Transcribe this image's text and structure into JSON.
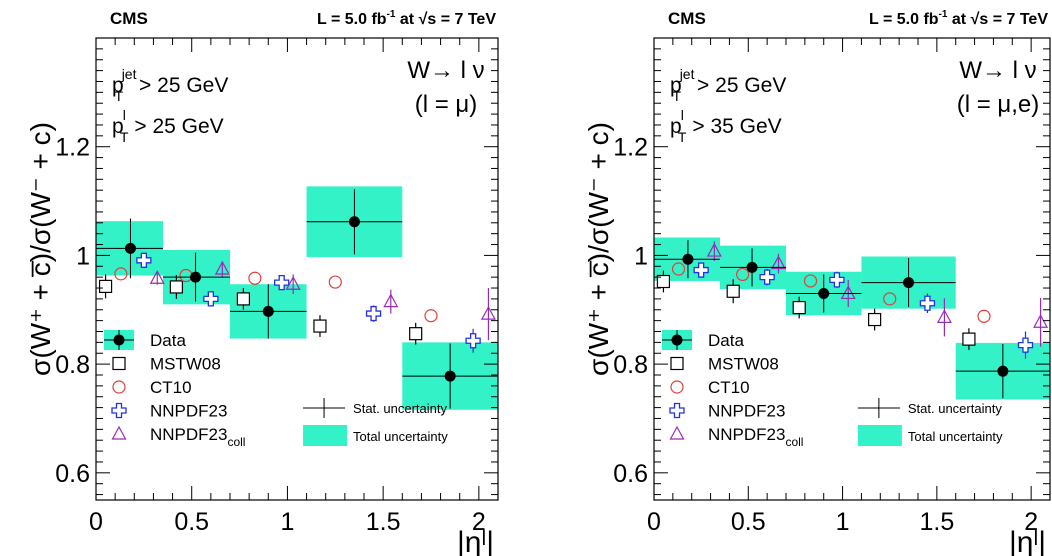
{
  "chart_data": [
    {
      "type": "scatter",
      "experiment": "CMS",
      "luminosity": "L = 5.0 fb",
      "luminosity_exp": "-1",
      "energy_pre": " at ",
      "energy_s": "s",
      "energy_post": " = 7 TeV",
      "process": "W→ l ν",
      "channel": "(l = μ)",
      "cut_jet": "> 25 GeV",
      "cut_lepton": "> 35 GeV",
      "cut_lepton_left": "> 25 GeV",
      "ylabel": "σ(W⁺ + c̅)/σ(W⁻ + c)",
      "xlabel": "|ηˡ|",
      "xlim": [
        0,
        2.1
      ],
      "ylim": [
        0.55,
        1.4
      ],
      "xticks": [
        "0",
        "0.5",
        "1",
        "1.5",
        "2"
      ],
      "yticks": [
        "0.6",
        "0.8",
        "1",
        "1.2"
      ],
      "bins": [
        [
          0,
          0.35
        ],
        [
          0.35,
          0.7
        ],
        [
          0.7,
          1.1
        ],
        [
          1.1,
          1.6
        ],
        [
          1.6,
          2.1
        ]
      ],
      "data": {
        "name": "Data",
        "x": [
          0.18,
          0.52,
          0.9,
          1.35,
          1.85
        ],
        "y": [
          1.013,
          0.96,
          0.897,
          1.062,
          0.778
        ],
        "stat": [
          0.055,
          0.045,
          0.05,
          0.06,
          0.06
        ],
        "total": [
          0.05,
          0.05,
          0.05,
          0.065,
          0.062
        ]
      },
      "theory": [
        {
          "name": "MSTW08",
          "x": [
            0.05,
            0.42,
            0.77,
            1.17,
            1.67
          ],
          "y": [
            0.943,
            0.942,
            0.92,
            0.87,
            0.856
          ],
          "err": [
            0.022,
            0.022,
            0.02,
            0.02,
            0.02
          ]
        },
        {
          "name": "CT10",
          "x": [
            0.13,
            0.47,
            0.83,
            1.25,
            1.75
          ],
          "y": [
            0.966,
            0.963,
            0.958,
            0.951,
            0.889
          ],
          "err": [
            0,
            0,
            0,
            0,
            0
          ]
        },
        {
          "name": "NNPDF23",
          "x": [
            0.25,
            0.6,
            0.97,
            1.45,
            1.97
          ],
          "y": [
            0.991,
            0.92,
            0.95,
            0.893,
            0.843
          ],
          "err": [
            0.012,
            0.012,
            0.012,
            0.015,
            0.022
          ]
        },
        {
          "name": "NNPDF23",
          "name_sub": "coll",
          "x": [
            0.32,
            0.66,
            1.03,
            1.54,
            2.05
          ],
          "y": [
            0.958,
            0.975,
            0.947,
            0.915,
            0.892
          ],
          "err": [
            0.012,
            0.014,
            0.018,
            0.022,
            0.048
          ]
        }
      ],
      "legend": [
        "Data",
        "MSTW08",
        "CT10",
        "NNPDF23",
        "NNPDF23"
      ],
      "legend_stat": "Stat. uncertainty",
      "legend_total": "Total uncertainty"
    },
    {
      "type": "scatter",
      "experiment": "CMS",
      "luminosity": "L = 5.0 fb",
      "luminosity_exp": "-1",
      "energy_pre": " at ",
      "energy_s": "s",
      "energy_post": " = 7 TeV",
      "process": "W→ l ν",
      "channel": "(l = μ,e)",
      "cut_jet": "> 25 GeV",
      "cut_lepton": "> 35 GeV",
      "ylabel": "σ(W⁺ + c̅)/σ(W⁻ + c)",
      "xlabel": "|ηˡ|",
      "xlim": [
        0,
        2.1
      ],
      "ylim": [
        0.55,
        1.4
      ],
      "xticks": [
        "0",
        "0.5",
        "1",
        "1.5",
        "2"
      ],
      "yticks": [
        "0.6",
        "0.8",
        "1",
        "1.2"
      ],
      "bins": [
        [
          0,
          0.35
        ],
        [
          0.35,
          0.7
        ],
        [
          0.7,
          1.1
        ],
        [
          1.1,
          1.6
        ],
        [
          1.6,
          2.1
        ]
      ],
      "data": {
        "name": "Data",
        "x": [
          0.18,
          0.52,
          0.9,
          1.35,
          1.85
        ],
        "y": [
          0.993,
          0.978,
          0.93,
          0.95,
          0.787
        ],
        "stat": [
          0.035,
          0.035,
          0.035,
          0.045,
          0.05
        ],
        "total": [
          0.04,
          0.04,
          0.04,
          0.048,
          0.052
        ]
      },
      "theory": [
        {
          "name": "MSTW08",
          "x": [
            0.05,
            0.42,
            0.77,
            1.17,
            1.67
          ],
          "y": [
            0.952,
            0.934,
            0.904,
            0.882,
            0.846
          ],
          "err": [
            0.02,
            0.022,
            0.02,
            0.02,
            0.02
          ]
        },
        {
          "name": "CT10",
          "x": [
            0.13,
            0.47,
            0.83,
            1.25,
            1.75
          ],
          "y": [
            0.975,
            0.965,
            0.953,
            0.92,
            0.888
          ],
          "err": [
            0,
            0,
            0,
            0,
            0
          ]
        },
        {
          "name": "NNPDF23",
          "x": [
            0.25,
            0.6,
            0.97,
            1.45,
            1.97
          ],
          "y": [
            0.973,
            0.96,
            0.955,
            0.912,
            0.835
          ],
          "err": [
            0.012,
            0.015,
            0.015,
            0.018,
            0.025
          ]
        },
        {
          "name": "NNPDF23",
          "name_sub": "coll",
          "x": [
            0.32,
            0.66,
            1.03,
            1.54,
            2.05
          ],
          "y": [
            1.008,
            0.985,
            0.93,
            0.886,
            0.877
          ],
          "err": [
            0.018,
            0.018,
            0.025,
            0.035,
            0.045
          ]
        }
      ],
      "legend": [
        "Data",
        "MSTW08",
        "CT10",
        "NNPDF23",
        "NNPDF23"
      ],
      "legend_stat": "Stat. uncertainty",
      "legend_total": "Total uncertainty"
    }
  ]
}
